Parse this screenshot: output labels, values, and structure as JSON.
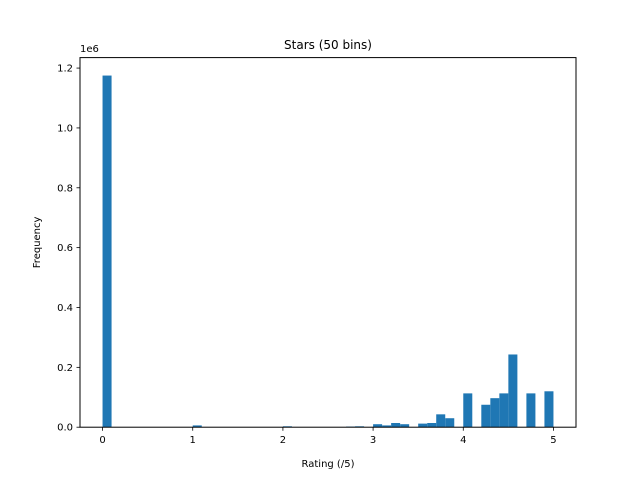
{
  "chart_data": {
    "type": "bar",
    "title": "Stars (50 bins)",
    "xlabel": "Rating (/5)",
    "ylabel": "Frequency",
    "y_offset_label": "1e6",
    "xlim": [
      -0.25,
      5.25
    ],
    "ylim": [
      0,
      1.235
    ],
    "x_ticks": [
      0,
      1,
      2,
      3,
      4,
      5
    ],
    "x_tick_labels": [
      "0",
      "1",
      "2",
      "3",
      "4",
      "5"
    ],
    "y_ticks": [
      0,
      0.2,
      0.4,
      0.6,
      0.8,
      1.0,
      1.2
    ],
    "y_tick_labels": [
      "0.0",
      "0.2",
      "0.4",
      "0.6",
      "0.8",
      "1.0",
      "1.2"
    ],
    "grid": false,
    "color": "#1f77b4",
    "bin_width": 0.1,
    "bins": [
      {
        "x": 0.0,
        "value": 1.175
      },
      {
        "x": 1.0,
        "value": 0.006
      },
      {
        "x": 2.0,
        "value": 0.003
      },
      {
        "x": 2.7,
        "value": 0.002
      },
      {
        "x": 2.8,
        "value": 0.003
      },
      {
        "x": 3.0,
        "value": 0.01
      },
      {
        "x": 3.1,
        "value": 0.006
      },
      {
        "x": 3.2,
        "value": 0.014
      },
      {
        "x": 3.3,
        "value": 0.01
      },
      {
        "x": 3.5,
        "value": 0.012
      },
      {
        "x": 3.6,
        "value": 0.014
      },
      {
        "x": 3.7,
        "value": 0.043
      },
      {
        "x": 3.8,
        "value": 0.03
      },
      {
        "x": 4.0,
        "value": 0.113
      },
      {
        "x": 4.2,
        "value": 0.075
      },
      {
        "x": 4.3,
        "value": 0.097
      },
      {
        "x": 4.4,
        "value": 0.113
      },
      {
        "x": 4.5,
        "value": 0.243
      },
      {
        "x": 4.7,
        "value": 0.113
      },
      {
        "x": 4.9,
        "value": 0.12
      }
    ]
  }
}
